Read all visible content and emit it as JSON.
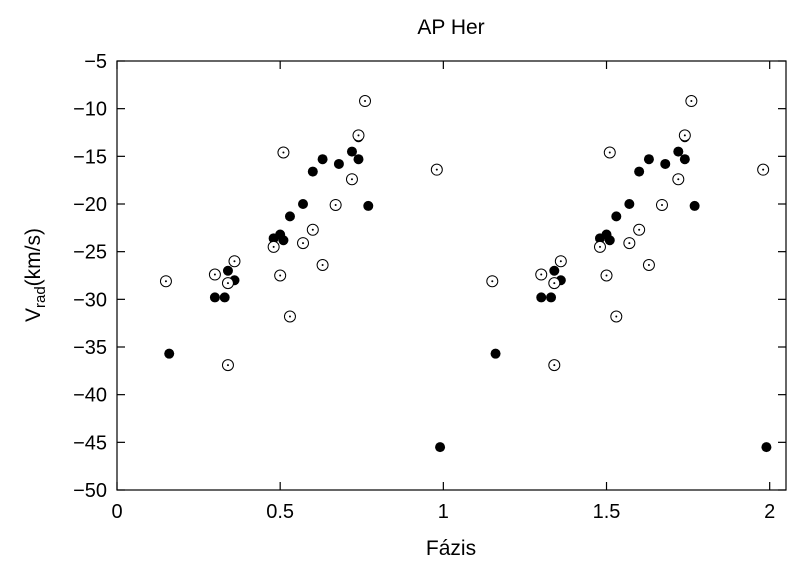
{
  "chart_data": {
    "type": "scatter",
    "title": "AP Her",
    "xlabel": "Fázis",
    "ylabel_main": "V",
    "ylabel_sub": "rad",
    "ylabel_unit": "(km/s)",
    "xlim": [
      0,
      2.05
    ],
    "ylim": [
      -50,
      -5
    ],
    "xticks": [
      0,
      0.5,
      1,
      1.5,
      2
    ],
    "xtick_labels": [
      "0",
      "0.5",
      "1",
      "1.5",
      "2"
    ],
    "yticks": [
      -50,
      -45,
      -40,
      -35,
      -30,
      -25,
      -20,
      -15,
      -10,
      -5
    ],
    "ytick_labels": [
      "−50",
      "−45",
      "−40",
      "−35",
      "−30",
      "−25",
      "−20",
      "−15",
      "−10",
      "−5"
    ],
    "grid": false,
    "legend": "none",
    "colors": {
      "axis": "#000000",
      "marker": "#000000",
      "background": "#ffffff"
    },
    "series": [
      {
        "marker": "filled-circle",
        "points": [
          [
            0.16,
            -35.7
          ],
          [
            0.3,
            -29.8
          ],
          [
            0.33,
            -29.8
          ],
          [
            0.34,
            -27.0
          ],
          [
            0.36,
            -28.0
          ],
          [
            0.48,
            -23.6
          ],
          [
            0.5,
            -23.2
          ],
          [
            0.51,
            -23.8
          ],
          [
            0.53,
            -21.3
          ],
          [
            0.57,
            -20.0
          ],
          [
            0.6,
            -16.6
          ],
          [
            0.63,
            -15.3
          ],
          [
            0.68,
            -15.8
          ],
          [
            0.72,
            -14.5
          ],
          [
            0.74,
            -15.3
          ],
          [
            0.74,
            -13.0
          ],
          [
            0.77,
            -20.2
          ],
          [
            0.99,
            -45.5
          ],
          [
            1.16,
            -35.7
          ],
          [
            1.3,
            -29.8
          ],
          [
            1.33,
            -29.8
          ],
          [
            1.34,
            -27.0
          ],
          [
            1.36,
            -28.0
          ],
          [
            1.48,
            -23.6
          ],
          [
            1.5,
            -23.2
          ],
          [
            1.51,
            -23.8
          ],
          [
            1.53,
            -21.3
          ],
          [
            1.57,
            -20.0
          ],
          [
            1.6,
            -16.6
          ],
          [
            1.63,
            -15.3
          ],
          [
            1.68,
            -15.8
          ],
          [
            1.72,
            -14.5
          ],
          [
            1.74,
            -15.3
          ],
          [
            1.74,
            -13.0
          ],
          [
            1.77,
            -20.2
          ],
          [
            1.99,
            -45.5
          ]
        ]
      },
      {
        "marker": "circle-dot",
        "points": [
          [
            0.15,
            -28.1
          ],
          [
            0.3,
            -27.4
          ],
          [
            0.34,
            -36.9
          ],
          [
            0.34,
            -28.3
          ],
          [
            0.36,
            -26.0
          ],
          [
            0.48,
            -24.5
          ],
          [
            0.5,
            -27.5
          ],
          [
            0.51,
            -14.6
          ],
          [
            0.53,
            -31.8
          ],
          [
            0.57,
            -24.1
          ],
          [
            0.6,
            -22.7
          ],
          [
            0.63,
            -26.4
          ],
          [
            0.67,
            -20.1
          ],
          [
            0.72,
            -17.4
          ],
          [
            0.74,
            -12.8
          ],
          [
            0.76,
            -9.2
          ],
          [
            0.98,
            -16.4
          ],
          [
            1.15,
            -28.1
          ],
          [
            1.3,
            -27.4
          ],
          [
            1.34,
            -36.9
          ],
          [
            1.34,
            -28.3
          ],
          [
            1.36,
            -26.0
          ],
          [
            1.48,
            -24.5
          ],
          [
            1.5,
            -27.5
          ],
          [
            1.51,
            -14.6
          ],
          [
            1.53,
            -31.8
          ],
          [
            1.57,
            -24.1
          ],
          [
            1.6,
            -22.7
          ],
          [
            1.63,
            -26.4
          ],
          [
            1.67,
            -20.1
          ],
          [
            1.72,
            -17.4
          ],
          [
            1.74,
            -12.8
          ],
          [
            1.76,
            -9.2
          ],
          [
            1.98,
            -16.4
          ]
        ]
      }
    ]
  }
}
